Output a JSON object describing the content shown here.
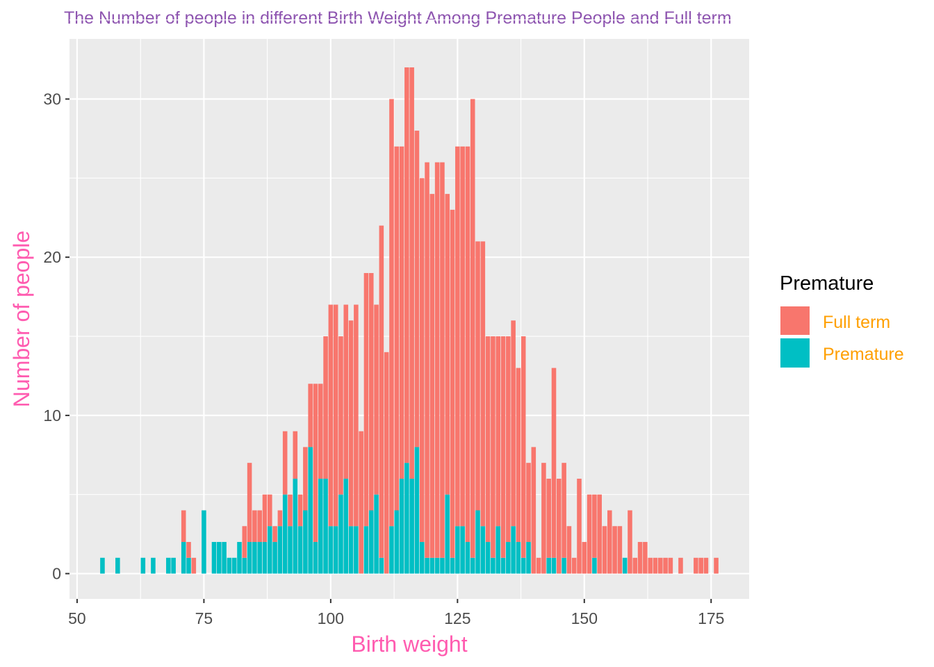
{
  "chart_data": {
    "type": "bar",
    "stacked": true,
    "title": "The Number of people in different Birth Weight Among Premature People and Full term",
    "xlabel": "Birth weight",
    "ylabel": "Number of people",
    "xlim": [
      48.5,
      182.5
    ],
    "ylim": [
      -1.6,
      33.8
    ],
    "x_ticks": [
      50,
      75,
      100,
      125,
      150,
      175
    ],
    "x_tick_labels": [
      "50",
      "75",
      "100",
      "125",
      "150",
      "175"
    ],
    "y_ticks": [
      0,
      10,
      20,
      30
    ],
    "y_tick_labels": [
      "0",
      "10",
      "20",
      "30"
    ],
    "grid": true,
    "legend": {
      "title": "Premature",
      "position": "right",
      "entries": [
        "Full term",
        "Premature"
      ]
    },
    "colors": {
      "Full term": "#F8766D",
      "Premature": "#00BFC4",
      "title": "#8E55B0",
      "axis_title": "#FF5CB0",
      "legend_label": "#FF9F00",
      "panel": "#EBEBEB"
    },
    "series": [
      {
        "name": "Premature",
        "x": [
          55,
          58,
          63,
          65,
          68,
          69,
          71,
          72,
          75,
          77,
          78,
          79,
          80,
          81,
          82,
          83,
          84,
          85,
          86,
          87,
          88,
          89,
          90,
          91,
          92,
          93,
          94,
          95,
          96,
          97,
          98,
          99,
          100,
          101,
          102,
          103,
          104,
          105,
          107,
          108,
          109,
          110,
          112,
          113,
          114,
          115,
          116,
          117,
          118,
          119,
          120,
          121,
          122,
          123,
          124,
          125,
          126,
          127,
          128,
          129,
          130,
          131,
          132,
          133,
          134,
          135,
          136,
          137,
          138,
          139,
          143,
          144,
          146,
          152,
          158
        ],
        "values": [
          1,
          1,
          1,
          1,
          1,
          1,
          2,
          1,
          4,
          2,
          2,
          2,
          1,
          1,
          2,
          1,
          2,
          2,
          2,
          2,
          3,
          2,
          3,
          5,
          3,
          6,
          3,
          4,
          8,
          2,
          6,
          6,
          3,
          3,
          5,
          6,
          3,
          3,
          3,
          4,
          5,
          1,
          3,
          4,
          6,
          7,
          6,
          8,
          2,
          1,
          1,
          1,
          1,
          5,
          1,
          3,
          3,
          2,
          1,
          4,
          3,
          2,
          1,
          3,
          1,
          2,
          3,
          2,
          1,
          2,
          1,
          1,
          1,
          1,
          1
        ]
      },
      {
        "name": "Full term",
        "x": [
          71,
          72,
          73,
          83,
          84,
          85,
          86,
          87,
          88,
          89,
          90,
          91,
          92,
          93,
          94,
          95,
          96,
          97,
          98,
          99,
          100,
          101,
          102,
          103,
          104,
          105,
          106,
          107,
          108,
          109,
          110,
          111,
          112,
          113,
          114,
          115,
          116,
          117,
          118,
          119,
          120,
          121,
          122,
          123,
          124,
          125,
          126,
          127,
          128,
          129,
          130,
          131,
          132,
          133,
          134,
          135,
          136,
          137,
          138,
          139,
          140,
          141,
          142,
          143,
          144,
          145,
          146,
          147,
          148,
          149,
          150,
          151,
          152,
          153,
          154,
          155,
          156,
          157,
          159,
          160,
          161,
          162,
          163,
          164,
          165,
          166,
          167,
          169,
          172,
          173,
          174,
          176
        ],
        "values": [
          2,
          1,
          1,
          2,
          5,
          2,
          2,
          3,
          2,
          1,
          1,
          4,
          2,
          3,
          2,
          4,
          4,
          10,
          6,
          9,
          14,
          14,
          10,
          11,
          13,
          14,
          9,
          16,
          15,
          12,
          21,
          14,
          27,
          23,
          21,
          25,
          26,
          20,
          23,
          25,
          23,
          25,
          25,
          19,
          22,
          24,
          24,
          25,
          29,
          17,
          18,
          13,
          14,
          12,
          14,
          13,
          13,
          11,
          14,
          5,
          8,
          1,
          7,
          5,
          12,
          6,
          6,
          3,
          1,
          6,
          2,
          5,
          4,
          5,
          3,
          4,
          3,
          3,
          4,
          1,
          2,
          2,
          1,
          1,
          1,
          1,
          1,
          1,
          1,
          1,
          1,
          1
        ]
      }
    ]
  }
}
